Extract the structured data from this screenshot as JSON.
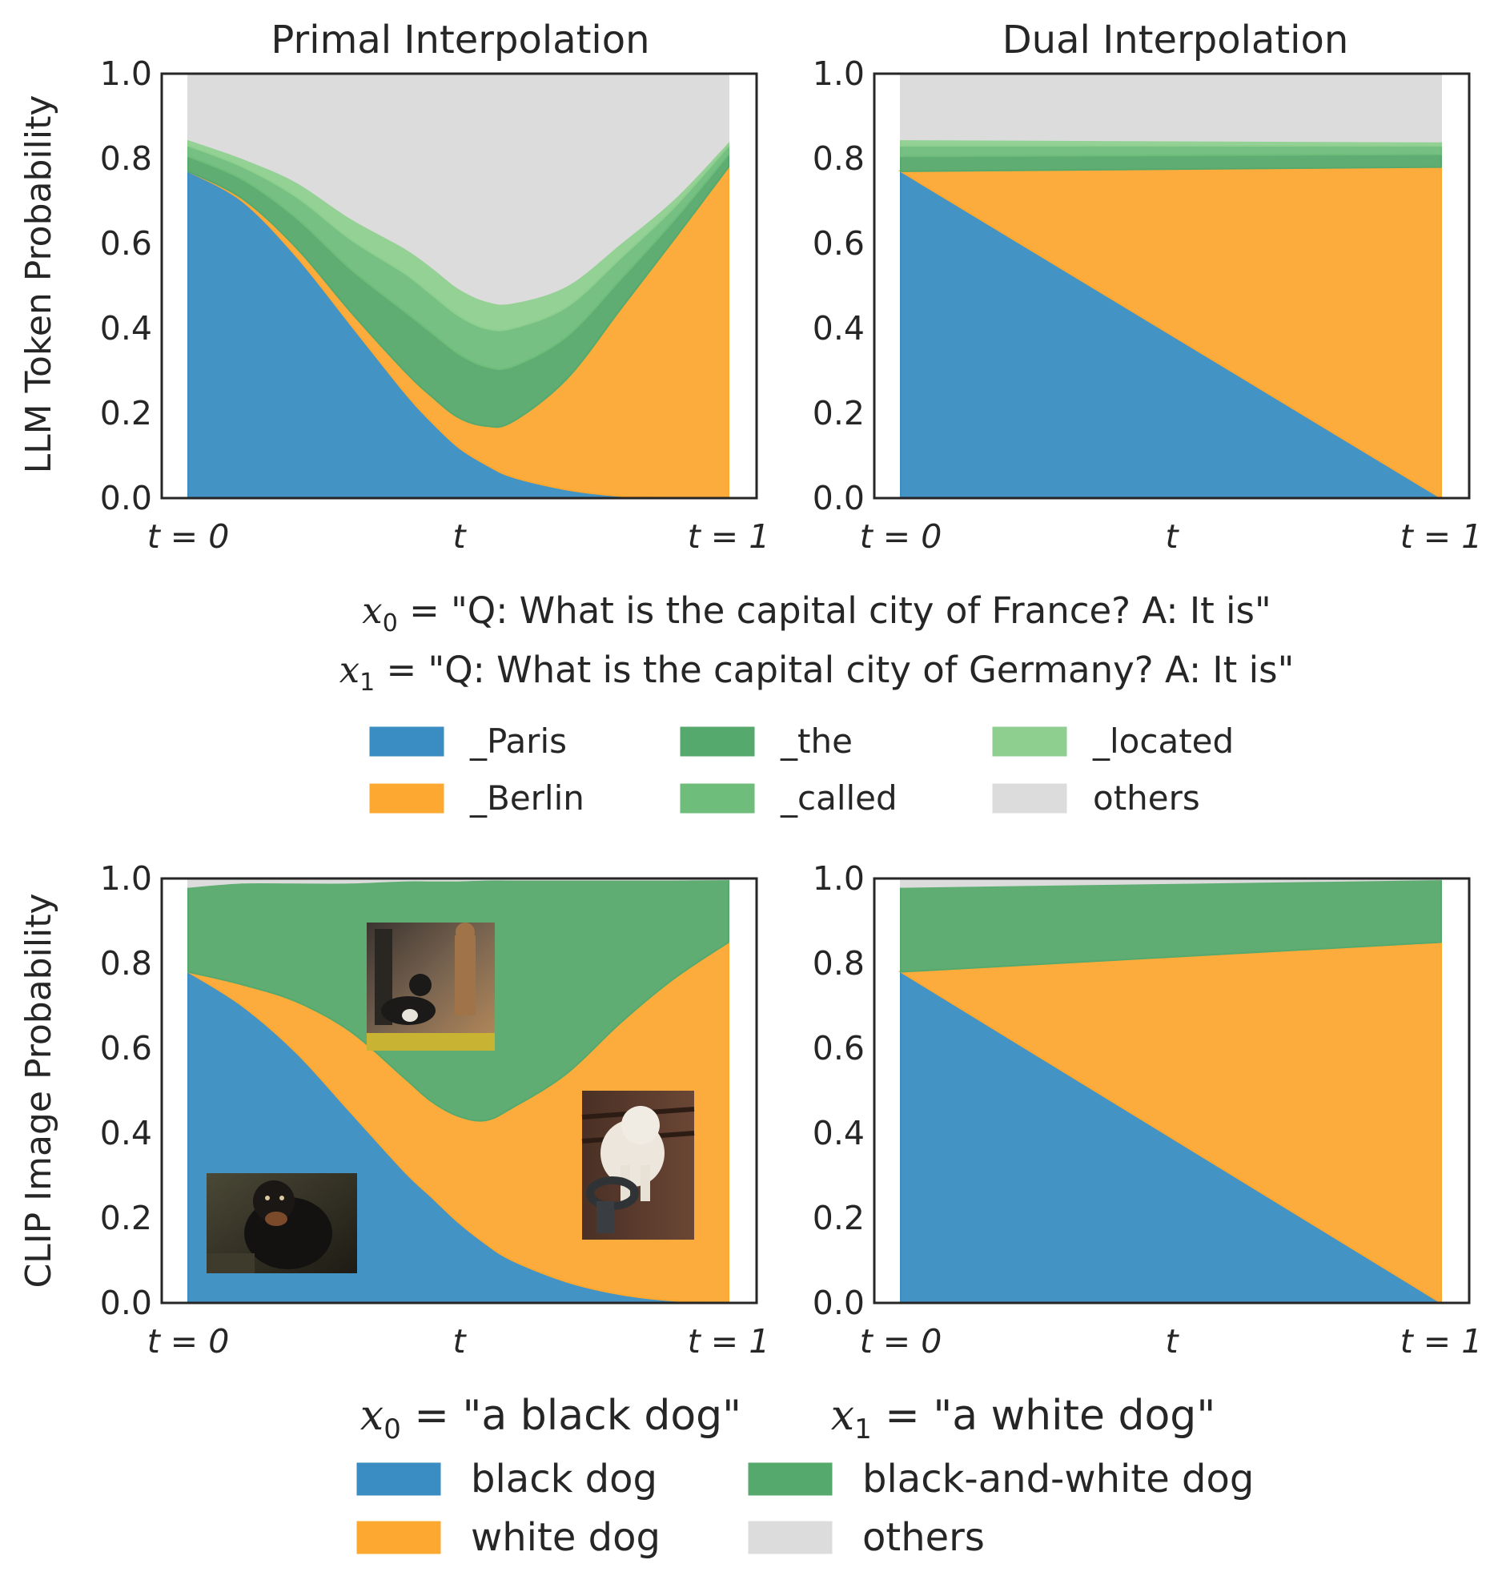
{
  "colors": {
    "paris": "#3a8dc2",
    "berlin": "#fca831",
    "the": "#56a96c",
    "called": "#6ebd7b",
    "located": "#8ecf8f",
    "others": "#dcdcdc",
    "black_dog": "#3a8dc2",
    "white_dog": "#fca831",
    "bw_dog": "#56a96c",
    "others_clip": "#dcdcdc",
    "axis": "#262626"
  },
  "chart_data": [
    {
      "id": "llm-primal",
      "type": "area",
      "title": "Primal Interpolation",
      "ylabel": "LLM Token Probability",
      "ylim": [
        0,
        1
      ],
      "yticks": [
        "0.0",
        "0.2",
        "0.4",
        "0.6",
        "0.8",
        "1.0"
      ],
      "xticks": [
        "t = 0",
        "t",
        "t = 1"
      ],
      "x": [
        0,
        0.1,
        0.2,
        0.3,
        0.4,
        0.45,
        0.5,
        0.55,
        0.6,
        0.7,
        0.8,
        0.9,
        1.0
      ],
      "series": [
        {
          "name": "_Paris",
          "color_key": "paris",
          "values": [
            0.77,
            0.7,
            0.57,
            0.41,
            0.25,
            0.18,
            0.12,
            0.08,
            0.05,
            0.02,
            0.005,
            0.001,
            0.0
          ]
        },
        {
          "name": "_Berlin",
          "color_key": "berlin",
          "values": [
            0.0,
            0.006,
            0.02,
            0.03,
            0.05,
            0.06,
            0.07,
            0.09,
            0.13,
            0.26,
            0.44,
            0.61,
            0.78
          ]
        },
        {
          "name": "_the",
          "color_key": "the",
          "values": [
            0.035,
            0.045,
            0.07,
            0.1,
            0.14,
            0.15,
            0.15,
            0.14,
            0.13,
            0.1,
            0.07,
            0.045,
            0.03
          ]
        },
        {
          "name": "_called",
          "color_key": "called",
          "values": [
            0.025,
            0.03,
            0.05,
            0.07,
            0.09,
            0.09,
            0.09,
            0.09,
            0.09,
            0.07,
            0.05,
            0.03,
            0.02
          ]
        },
        {
          "name": "_located",
          "color_key": "located",
          "values": [
            0.015,
            0.02,
            0.035,
            0.05,
            0.06,
            0.065,
            0.065,
            0.065,
            0.06,
            0.05,
            0.035,
            0.02,
            0.01
          ]
        },
        {
          "name": "others",
          "color_key": "others",
          "values": [
            0.155,
            0.199,
            0.255,
            0.34,
            0.41,
            0.455,
            0.505,
            0.535,
            0.54,
            0.5,
            0.4,
            0.294,
            0.16
          ]
        }
      ]
    },
    {
      "id": "llm-dual",
      "type": "area",
      "title": "Dual Interpolation",
      "ylabel": "",
      "ylim": [
        0,
        1
      ],
      "yticks": [
        "0.0",
        "0.2",
        "0.4",
        "0.6",
        "0.8",
        "1.0"
      ],
      "xticks": [
        "t = 0",
        "t",
        "t = 1"
      ],
      "x": [
        0,
        1.0
      ],
      "series": [
        {
          "name": "_Paris",
          "color_key": "paris",
          "values": [
            0.77,
            0.0
          ]
        },
        {
          "name": "_Berlin",
          "color_key": "berlin",
          "values": [
            0.0,
            0.78
          ]
        },
        {
          "name": "_the",
          "color_key": "the",
          "values": [
            0.035,
            0.03
          ]
        },
        {
          "name": "_called",
          "color_key": "called",
          "values": [
            0.025,
            0.02
          ]
        },
        {
          "name": "_located",
          "color_key": "located",
          "values": [
            0.015,
            0.01
          ]
        },
        {
          "name": "others",
          "color_key": "others",
          "values": [
            0.155,
            0.16
          ]
        }
      ]
    },
    {
      "id": "clip-primal",
      "type": "area",
      "title": "",
      "ylabel": "CLIP Image Probability",
      "ylim": [
        0,
        1
      ],
      "yticks": [
        "0.0",
        "0.2",
        "0.4",
        "0.6",
        "0.8",
        "1.0"
      ],
      "xticks": [
        "t = 0",
        "t",
        "t = 1"
      ],
      "x": [
        0,
        0.1,
        0.2,
        0.3,
        0.4,
        0.45,
        0.5,
        0.55,
        0.6,
        0.7,
        0.8,
        0.9,
        1.0
      ],
      "series": [
        {
          "name": "black dog",
          "color_key": "black_dog",
          "values": [
            0.78,
            0.7,
            0.59,
            0.45,
            0.31,
            0.25,
            0.19,
            0.14,
            0.1,
            0.05,
            0.02,
            0.005,
            0.0
          ]
        },
        {
          "name": "white dog",
          "color_key": "white_dog",
          "values": [
            0.0,
            0.05,
            0.12,
            0.19,
            0.22,
            0.225,
            0.25,
            0.29,
            0.36,
            0.49,
            0.64,
            0.76,
            0.85
          ]
        },
        {
          "name": "black-and-white dog",
          "color_key": "bw_dog",
          "values": [
            0.2,
            0.24,
            0.28,
            0.35,
            0.465,
            0.52,
            0.555,
            0.567,
            0.537,
            0.457,
            0.337,
            0.232,
            0.148
          ]
        },
        {
          "name": "others",
          "color_key": "others_clip",
          "values": [
            0.02,
            0.01,
            0.01,
            0.01,
            0.005,
            0.005,
            0.005,
            0.003,
            0.003,
            0.003,
            0.003,
            0.003,
            0.002
          ]
        }
      ]
    },
    {
      "id": "clip-dual",
      "type": "area",
      "title": "",
      "ylabel": "",
      "ylim": [
        0,
        1
      ],
      "yticks": [
        "0.0",
        "0.2",
        "0.4",
        "0.6",
        "0.8",
        "1.0"
      ],
      "xticks": [
        "t = 0",
        "t",
        "t = 1"
      ],
      "x": [
        0,
        1.0
      ],
      "series": [
        {
          "name": "black dog",
          "color_key": "black_dog",
          "values": [
            0.78,
            0.0
          ]
        },
        {
          "name": "white dog",
          "color_key": "white_dog",
          "values": [
            0.0,
            0.85
          ]
        },
        {
          "name": "black-and-white dog",
          "color_key": "bw_dog",
          "values": [
            0.2,
            0.148
          ]
        },
        {
          "name": "others",
          "color_key": "others_clip",
          "values": [
            0.02,
            0.002
          ]
        }
      ]
    }
  ],
  "llm_caption": {
    "x0_var": "x",
    "x0_sub": "0",
    "x0_text": " = \"Q: What is the capital city of France? A: It is\"",
    "x1_var": "x",
    "x1_sub": "1",
    "x1_text": " = \"Q: What is the capital city of Germany? A: It is\""
  },
  "llm_legend": [
    {
      "label": "_Paris",
      "color_key": "paris"
    },
    {
      "label": "_Berlin",
      "color_key": "berlin"
    },
    {
      "label": "_the",
      "color_key": "the"
    },
    {
      "label": "_called",
      "color_key": "called"
    },
    {
      "label": "_located",
      "color_key": "located"
    },
    {
      "label": "others",
      "color_key": "others"
    }
  ],
  "clip_caption": {
    "x0_var": "x",
    "x0_sub": "0",
    "x0_text": " = \"a black dog\"",
    "x1_var": "x",
    "x1_sub": "1",
    "x1_text": " = \"a white dog\""
  },
  "clip_legend": [
    {
      "label": "black dog",
      "color_key": "black_dog"
    },
    {
      "label": "white dog",
      "color_key": "white_dog"
    },
    {
      "label": "black-and-white dog",
      "color_key": "bw_dog"
    },
    {
      "label": "others",
      "color_key": "others_clip"
    }
  ],
  "photos": [
    {
      "id": "photo-bw-dog",
      "depicts": "black-and-white-dog-photo"
    },
    {
      "id": "photo-black-dog",
      "depicts": "black-dog-photo"
    },
    {
      "id": "photo-white-dog",
      "depicts": "white-dog-photo"
    }
  ]
}
